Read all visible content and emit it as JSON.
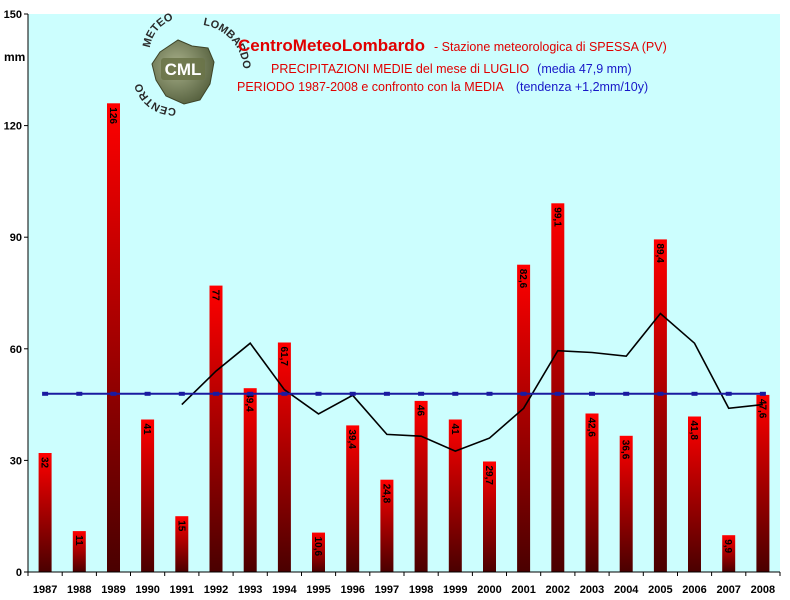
{
  "chart_data": {
    "type": "bar",
    "title_brand": "CentroMeteoLombardo",
    "title_station": "- Stazione meteorologica di SPESSA (PV)",
    "subtitle_1": "PRECIPITAZIONI MEDIE del mese di LUGLIO",
    "subtitle_1_mean": "(media 47,9 mm)",
    "subtitle_2": "PERIODO 1987-2008 e confronto con la MEDIA",
    "subtitle_2_trend": "(tendenza +1,2mm/10y)",
    "ylabel": "mm",
    "ylim": [
      0,
      150
    ],
    "yticks": [
      0,
      30,
      60,
      90,
      120,
      150
    ],
    "grid": false,
    "categories": [
      "1987",
      "1988",
      "1989",
      "1990",
      "1991",
      "1992",
      "1993",
      "1994",
      "1995",
      "1996",
      "1997",
      "1998",
      "1999",
      "2000",
      "2001",
      "2002",
      "2003",
      "2004",
      "2005",
      "2006",
      "2007",
      "2008"
    ],
    "values": [
      32,
      11,
      126,
      41,
      15,
      77,
      49.4,
      61.7,
      10.6,
      39.4,
      24.8,
      46,
      41,
      29.7,
      82.6,
      99.1,
      42.6,
      36.6,
      89.4,
      41.8,
      9.9,
      47.6
    ],
    "data_labels": [
      "32",
      "11",
      "126",
      "41",
      "15",
      "77",
      "49,4",
      "61,7",
      "10,6",
      "39,4",
      "24,8",
      "46",
      "41",
      "29,7",
      "82,6",
      "99,1",
      "42,6",
      "36,6",
      "89,4",
      "41,8",
      "9,9",
      "47,6"
    ],
    "mean_line": {
      "value": 47.9,
      "color": "#1a1aa0"
    },
    "moving_average": {
      "color": "#000000",
      "start_index": 4,
      "values": [
        45,
        54,
        61.5,
        49,
        42.5,
        47.5,
        37,
        36.5,
        32.5,
        36,
        44,
        59.5,
        59,
        58,
        69.5,
        61.5,
        44,
        45
      ]
    },
    "colors": {
      "plot_bg": "#ccfefe",
      "bar_top": "#ff0000",
      "bar_bottom": "#4a0000"
    }
  },
  "logo": {
    "badge": "CML",
    "arc_left": "CENTRO",
    "arc_top": "METEO",
    "arc_right": "LOMBARDO"
  }
}
